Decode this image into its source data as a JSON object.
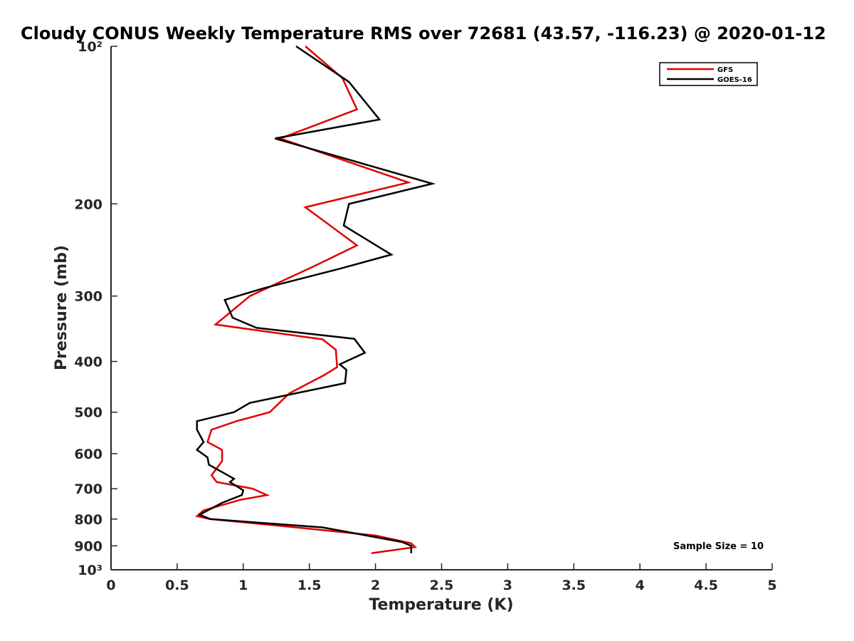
{
  "chart_data": {
    "type": "line",
    "title": "Cloudy CONUS Weekly Temperature RMS over 72681 (43.57, -116.23) @ 2020-01-12",
    "xlabel": "Temperature (K)",
    "ylabel": "Pressure (mb)",
    "xlim": [
      0,
      5
    ],
    "ylim": [
      100,
      1000
    ],
    "yscale": "log",
    "y_reversed": true,
    "xticks": [
      0,
      0.5,
      1,
      1.5,
      2,
      2.5,
      3,
      3.5,
      4,
      4.5,
      5
    ],
    "xtick_labels": [
      "0",
      "0.5",
      "1",
      "1.5",
      "2",
      "2.5",
      "3",
      "3.5",
      "4",
      "4.5",
      "5"
    ],
    "yticks": [
      100,
      200,
      300,
      400,
      500,
      600,
      700,
      800,
      900,
      1000
    ],
    "ytick_labels": [
      "10²",
      "200",
      "300",
      "400",
      "500",
      "600",
      "700",
      "800",
      "900",
      "10³"
    ],
    "grid": false,
    "legend_position": "top-right",
    "annotation": "Sample Size = 10",
    "series": [
      {
        "name": "GFS",
        "color": "#e00000",
        "points": [
          [
            1.47,
            100
          ],
          [
            1.75,
            115
          ],
          [
            1.86,
            132
          ],
          [
            1.28,
            150
          ],
          [
            2.25,
            182
          ],
          [
            1.47,
            203
          ],
          [
            1.86,
            240
          ],
          [
            1.55,
            262
          ],
          [
            1.05,
            300
          ],
          [
            0.79,
            340
          ],
          [
            1.6,
            363
          ],
          [
            1.7,
            380
          ],
          [
            1.71,
            410
          ],
          [
            1.61,
            425
          ],
          [
            1.35,
            460
          ],
          [
            1.2,
            500
          ],
          [
            0.95,
            520
          ],
          [
            0.76,
            540
          ],
          [
            0.73,
            570
          ],
          [
            0.84,
            590
          ],
          [
            0.84,
            620
          ],
          [
            0.76,
            660
          ],
          [
            0.8,
            680
          ],
          [
            1.07,
            700
          ],
          [
            1.18,
            720
          ],
          [
            0.98,
            735
          ],
          [
            0.7,
            770
          ],
          [
            0.65,
            790
          ],
          [
            0.75,
            800
          ],
          [
            1.4,
            830
          ],
          [
            2.0,
            860
          ],
          [
            2.27,
            890
          ],
          [
            2.3,
            905
          ],
          [
            1.97,
            930
          ]
        ]
      },
      {
        "name": "GOES-16",
        "color": "#000000",
        "points": [
          [
            1.4,
            100
          ],
          [
            1.8,
            117
          ],
          [
            2.03,
            138
          ],
          [
            1.24,
            150
          ],
          [
            2.43,
            183
          ],
          [
            1.8,
            200
          ],
          [
            1.76,
            220
          ],
          [
            2.12,
            250
          ],
          [
            1.73,
            266
          ],
          [
            1.15,
            290
          ],
          [
            0.86,
            305
          ],
          [
            0.92,
            330
          ],
          [
            1.1,
            345
          ],
          [
            1.84,
            362
          ],
          [
            1.92,
            385
          ],
          [
            1.73,
            405
          ],
          [
            1.78,
            415
          ],
          [
            1.77,
            440
          ],
          [
            1.4,
            460
          ],
          [
            1.05,
            480
          ],
          [
            0.93,
            500
          ],
          [
            0.65,
            520
          ],
          [
            0.65,
            540
          ],
          [
            0.7,
            570
          ],
          [
            0.65,
            590
          ],
          [
            0.73,
            610
          ],
          [
            0.74,
            630
          ],
          [
            0.93,
            670
          ],
          [
            0.9,
            680
          ],
          [
            1.0,
            705
          ],
          [
            0.99,
            720
          ],
          [
            0.84,
            745
          ],
          [
            0.67,
            785
          ],
          [
            0.75,
            800
          ],
          [
            1.6,
            830
          ],
          [
            2.2,
            885
          ],
          [
            2.27,
            900
          ],
          [
            2.27,
            930
          ]
        ]
      }
    ]
  }
}
